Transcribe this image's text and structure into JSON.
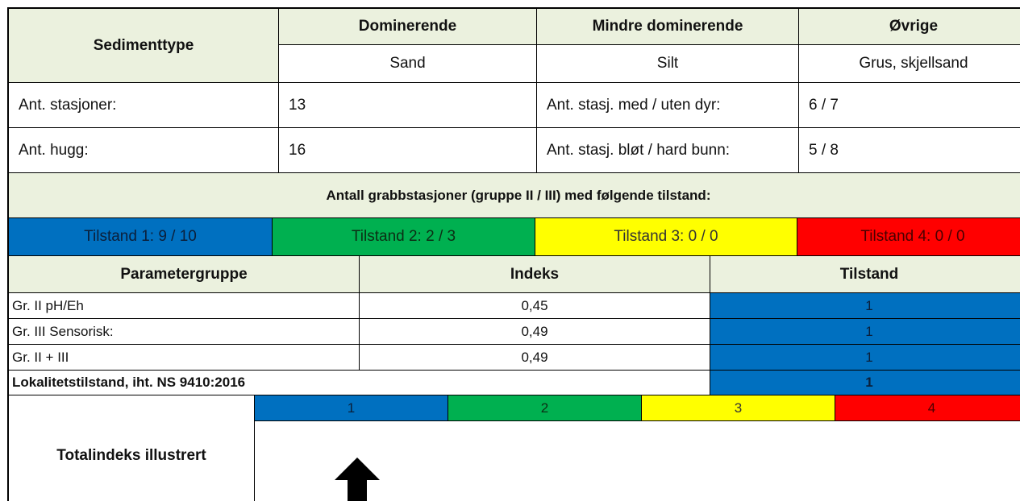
{
  "header": {
    "label": "Sedimenttype",
    "groups": [
      {
        "label": "Dominerende",
        "value": "Sand"
      },
      {
        "label": "Mindre dominerende",
        "value": "Silt"
      },
      {
        "label": "Øvrige",
        "value": "Grus, skjellsand"
      }
    ]
  },
  "stations": {
    "rows": [
      [
        "Ant. stasjoner:",
        "13",
        "Ant. stasj. med / uten dyr:",
        "6 / 7"
      ],
      [
        "Ant. hugg:",
        "16",
        "Ant. stasj. bløt / hard bunn:",
        "5 / 8"
      ]
    ]
  },
  "grab_title": "Antall grabbstasjoner (gruppe II / III) med følgende tilstand:",
  "tilstand": [
    "Tilstand 1: 9 / 10",
    "Tilstand 2: 2 / 3",
    "Tilstand 3: 0 / 0",
    "Tilstand 4: 0 / 0"
  ],
  "parameters": {
    "headers": [
      "Parametergruppe",
      "Indeks",
      "Tilstand"
    ],
    "rows": [
      [
        "Gr. II pH/Eh",
        "0,45",
        "1"
      ],
      [
        "Gr. III Sensorisk:",
        "0,49",
        "1"
      ],
      [
        "Gr. II + III",
        "0,49",
        "1"
      ]
    ]
  },
  "locality": {
    "label": "Lokalitetstilstand, iht. NS 9410:2016",
    "value": "1"
  },
  "total": {
    "label": "Totalindeks illustrert",
    "scale": [
      "1",
      "2",
      "3",
      "4"
    ]
  }
}
